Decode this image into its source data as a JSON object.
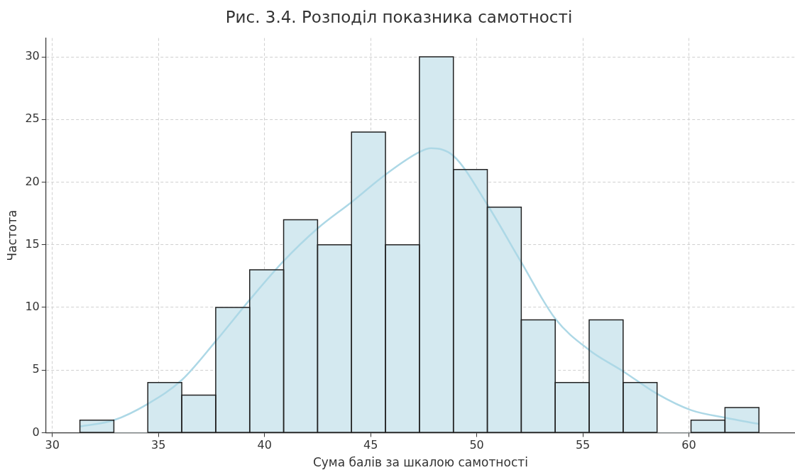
{
  "chart_data": {
    "type": "histogram",
    "title": "Рис. 3.4. Розподіл показника самотності",
    "xlabel": "Сума балів за шкалою самотності",
    "ylabel": "Частота",
    "bins": [
      31.3,
      32.9,
      34.5,
      36.1,
      37.7,
      39.3,
      40.9,
      42.5,
      44.1,
      45.7,
      47.3,
      48.9,
      50.5,
      52.1,
      53.7,
      55.3,
      56.9,
      58.5,
      60.1,
      61.7,
      63.3
    ],
    "values": [
      1,
      0,
      4,
      3,
      10,
      13,
      17,
      15,
      24,
      15,
      30,
      21,
      18,
      9,
      4,
      9,
      4,
      0,
      1,
      2
    ],
    "color": "#d4e9f0",
    "series": [
      {
        "type": "line",
        "color": "#add8e6",
        "x": [
          31.3,
          32.9,
          34.5,
          36.1,
          37.7,
          39.3,
          40.9,
          42.5,
          44.1,
          45.7,
          47.3,
          47.85,
          48.9,
          50.5,
          52.1,
          53.7,
          55.3,
          56.9,
          58.5,
          60.1,
          61.7,
          63.3
        ],
        "values": [
          0.5,
          1.0,
          2.3,
          4.2,
          7.3,
          10.6,
          13.7,
          16.3,
          18.4,
          20.6,
          22.4,
          22.7,
          22.1,
          18.2,
          13.6,
          9.1,
          6.6,
          4.9,
          3.1,
          1.8,
          1.2,
          0.7
        ]
      }
    ],
    "xlim": [
      29.7,
      65
    ],
    "xticks": [
      30,
      35,
      40,
      45,
      50,
      55,
      60
    ],
    "ylim": [
      0,
      31.5
    ],
    "yticks": [
      0,
      5,
      10,
      15,
      20,
      25,
      30
    ],
    "grid": true,
    "marker": "none",
    "line_style": "solid"
  }
}
